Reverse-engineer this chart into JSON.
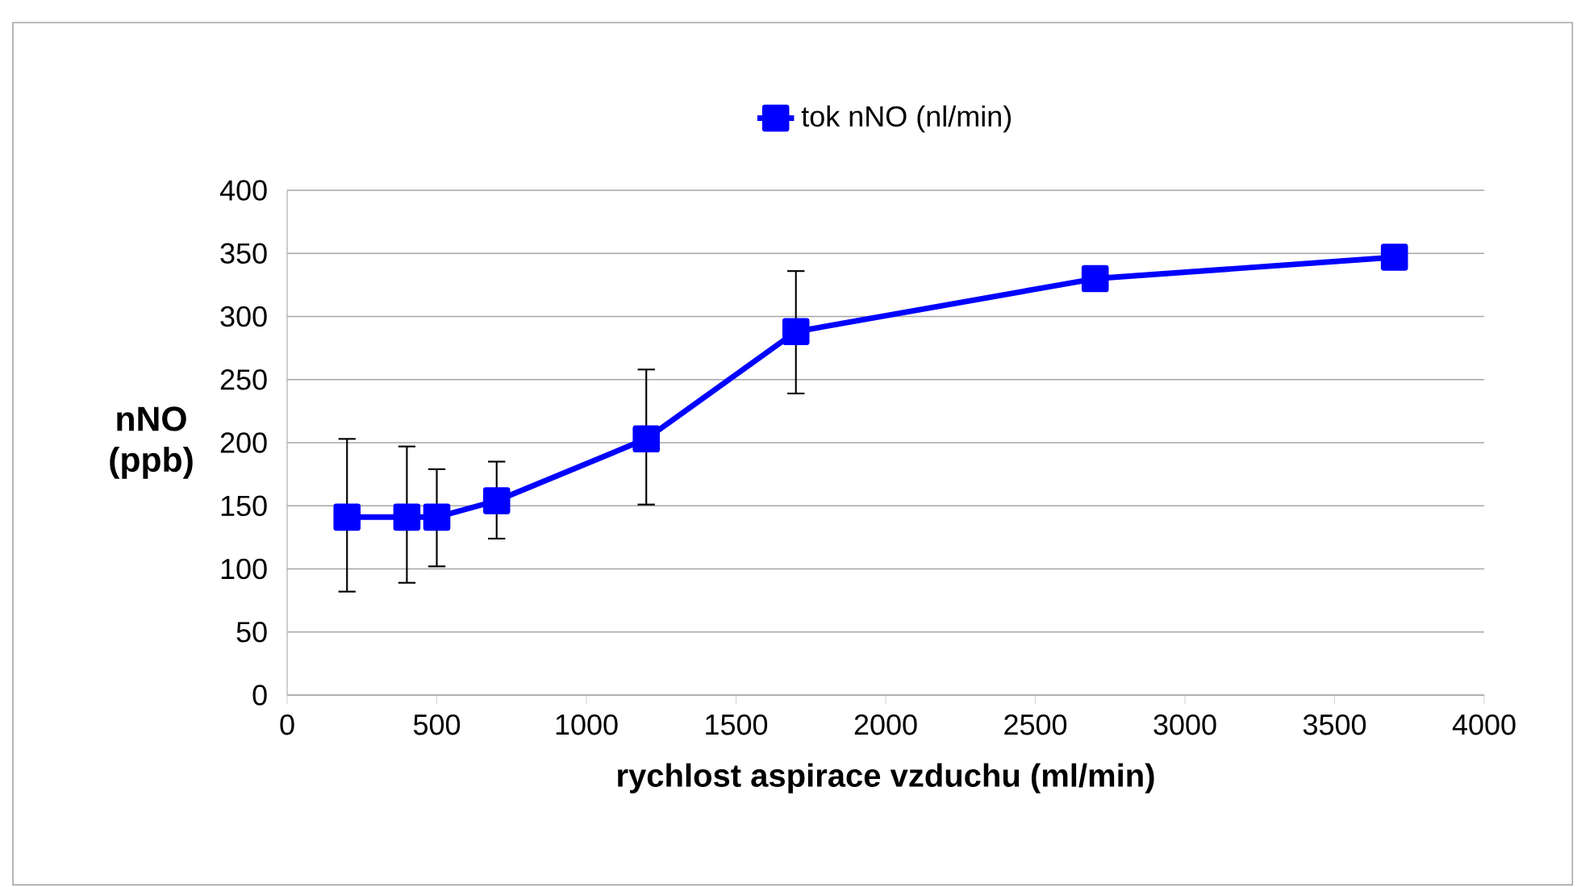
{
  "chart_data": {
    "type": "line",
    "xlabel": "rychlost aspirace vzduchu (ml/min)",
    "ylabel": "nNO (ppb)",
    "x": [
      200,
      400,
      500,
      700,
      1200,
      1700,
      2700,
      3700
    ],
    "series": [
      {
        "name": "tok nNO (nl/min)",
        "color": "#0000ff",
        "values": [
          141,
          141,
          141,
          154,
          203,
          288,
          330,
          347
        ],
        "errors": [
          [
            82,
            203
          ],
          [
            89,
            197
          ],
          [
            102,
            179
          ],
          [
            124,
            185
          ],
          [
            151,
            258
          ],
          [
            239,
            336
          ],
          null,
          null
        ]
      }
    ],
    "xlim": [
      0,
      4000
    ],
    "xticks": [
      0,
      500,
      1000,
      1500,
      2000,
      2500,
      3000,
      3500,
      4000
    ],
    "ylim": [
      0,
      400
    ],
    "yticks": [
      0,
      50,
      100,
      150,
      200,
      250,
      300,
      350,
      400
    ],
    "grid": "y",
    "legend": "top",
    "marker": "square",
    "line_style": "solid"
  }
}
